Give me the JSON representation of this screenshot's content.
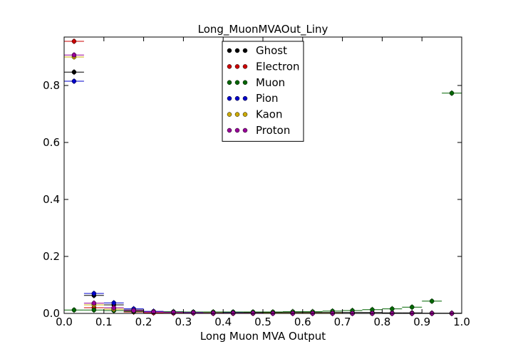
{
  "chart_data": {
    "type": "scatter",
    "title": "Long_MuonMVAOut_Liny",
    "xlabel": "Long Muon MVA Output",
    "ylabel": "",
    "xlim": [
      0.0,
      1.0
    ],
    "ylim": [
      0.0,
      0.97
    ],
    "xticks": [
      "0.0",
      "0.1",
      "0.2",
      "0.3",
      "0.4",
      "0.5",
      "0.6",
      "0.7",
      "0.8",
      "0.9",
      "1.0"
    ],
    "yticks": [
      "0.0",
      "0.2",
      "0.4",
      "0.6",
      "0.8"
    ],
    "grid": false,
    "legend_position": "top-center",
    "x": [
      0.025,
      0.075,
      0.125,
      0.175,
      0.225,
      0.275,
      0.325,
      0.375,
      0.425,
      0.475,
      0.525,
      0.575,
      0.625,
      0.675,
      0.725,
      0.775,
      0.825,
      0.875,
      0.925,
      0.975
    ],
    "x_error": 0.025,
    "series": [
      {
        "name": "Ghost",
        "color": "#000000",
        "values": [
          0.847,
          0.063,
          0.03,
          0.012,
          0.007,
          0.005,
          0.004,
          0.004,
          0.003,
          0.003,
          0.003,
          0.003,
          0.003,
          0.003,
          0.003,
          0.003,
          0.002,
          0.002,
          0.001,
          0.001
        ]
      },
      {
        "name": "Electron",
        "color": "#cc0000",
        "values": [
          0.955,
          0.02,
          0.01,
          0.005,
          0.002,
          0.001,
          0.001,
          0.0,
          0.0,
          0.0,
          0.0,
          0.0,
          0.0,
          0.0,
          0.0,
          0.0,
          0.0,
          0.0,
          0.0,
          0.0
        ]
      },
      {
        "name": "Muon",
        "color": "#006600",
        "values": [
          0.012,
          0.012,
          0.01,
          0.007,
          0.006,
          0.006,
          0.005,
          0.005,
          0.005,
          0.005,
          0.005,
          0.006,
          0.006,
          0.008,
          0.01,
          0.013,
          0.016,
          0.022,
          0.043,
          0.773
        ]
      },
      {
        "name": "Pion",
        "color": "#0000cc",
        "values": [
          0.815,
          0.07,
          0.037,
          0.016,
          0.007,
          0.004,
          0.003,
          0.002,
          0.002,
          0.001,
          0.001,
          0.001,
          0.001,
          0.001,
          0.0,
          0.0,
          0.0,
          0.0,
          0.0,
          0.0
        ]
      },
      {
        "name": "Kaon",
        "color": "#ccaa00",
        "values": [
          0.9,
          0.03,
          0.015,
          0.01,
          0.005,
          0.003,
          0.002,
          0.002,
          0.001,
          0.001,
          0.001,
          0.001,
          0.001,
          0.001,
          0.0,
          0.0,
          0.0,
          0.0,
          0.0,
          0.0
        ]
      },
      {
        "name": "Proton",
        "color": "#990099",
        "values": [
          0.907,
          0.036,
          0.02,
          0.01,
          0.005,
          0.003,
          0.002,
          0.001,
          0.001,
          0.001,
          0.0,
          0.0,
          0.0,
          0.0,
          0.0,
          0.0,
          0.0,
          0.0,
          0.0,
          0.0
        ]
      }
    ]
  }
}
